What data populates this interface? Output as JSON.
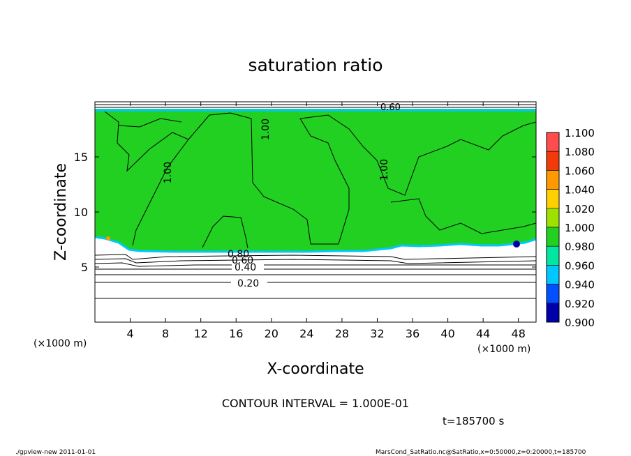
{
  "chart_data": {
    "type": "heatmap",
    "title": "saturation ratio",
    "xlabel": "X-coordinate",
    "ylabel": "Z-coordinate",
    "x_unit": "(×1000 m)",
    "y_unit": "(×1000 m)",
    "xlim": [
      0,
      50
    ],
    "ylim": [
      0,
      20
    ],
    "x_ticks": [
      4,
      8,
      12,
      16,
      20,
      24,
      28,
      32,
      36,
      40,
      44,
      48
    ],
    "y_ticks": [
      5,
      10,
      15
    ],
    "colorbar": {
      "levels": [
        "1.100",
        "1.080",
        "1.060",
        "1.040",
        "1.020",
        "1.000",
        "0.980",
        "0.960",
        "0.940",
        "0.920",
        "0.900"
      ],
      "colors": [
        "#ff9a9a",
        "#ff4c4c",
        "#f23a0a",
        "#ff9900",
        "#ffd000",
        "#9ee000",
        "#22d022",
        "#00e8a0",
        "#00c8ff",
        "#0050ff",
        "#0000aa",
        "#7000b0"
      ]
    },
    "contour_labels": [
      "1.00",
      "1.00",
      "1.00",
      "0.60",
      "0.40",
      "0.20",
      "0.80",
      "0.60"
    ],
    "contour_interval": "CONTOUR INTERVAL = 1.000E-01",
    "time": "t=185700 s",
    "footer_left": "./gpview-new  2011-01-01",
    "footer_right": "MarsCond_SatRatio.nc@SatRatio,x=0:50000,z=0:20000,t=185700"
  }
}
